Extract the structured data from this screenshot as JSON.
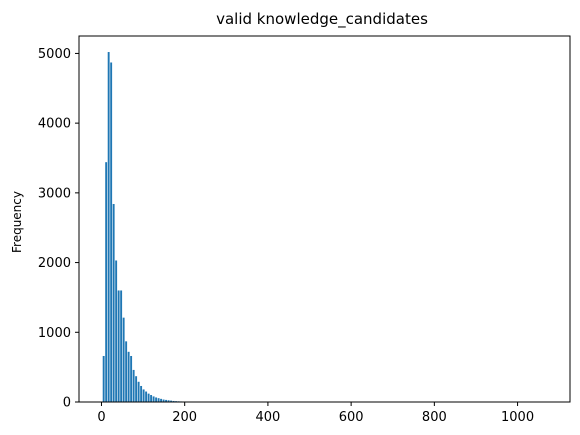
{
  "chart_data": {
    "type": "bar",
    "title": "valid knowledge_candidates",
    "xlabel": "",
    "ylabel": "Frequency",
    "xlim": [
      -54,
      1126
    ],
    "ylim": [
      0,
      5250
    ],
    "xticks": [
      0,
      200,
      400,
      600,
      800,
      1000
    ],
    "yticks": [
      0,
      1000,
      2000,
      3000,
      4000,
      5000
    ],
    "bar_color": "#1f77b4",
    "bin_width": 6,
    "x": [
      6,
      12,
      18,
      24,
      30,
      36,
      42,
      48,
      54,
      60,
      66,
      72,
      78,
      84,
      90,
      96,
      102,
      108,
      114,
      120,
      126,
      132,
      138,
      144,
      150,
      156,
      162,
      168,
      174,
      180,
      186,
      192,
      198,
      204,
      210,
      216
    ],
    "values": [
      660,
      3440,
      5020,
      4870,
      2840,
      2030,
      1600,
      1600,
      1210,
      870,
      720,
      660,
      460,
      370,
      290,
      230,
      180,
      150,
      120,
      100,
      80,
      65,
      55,
      45,
      35,
      30,
      25,
      20,
      15,
      12,
      10,
      8,
      6,
      5,
      4,
      3
    ]
  }
}
